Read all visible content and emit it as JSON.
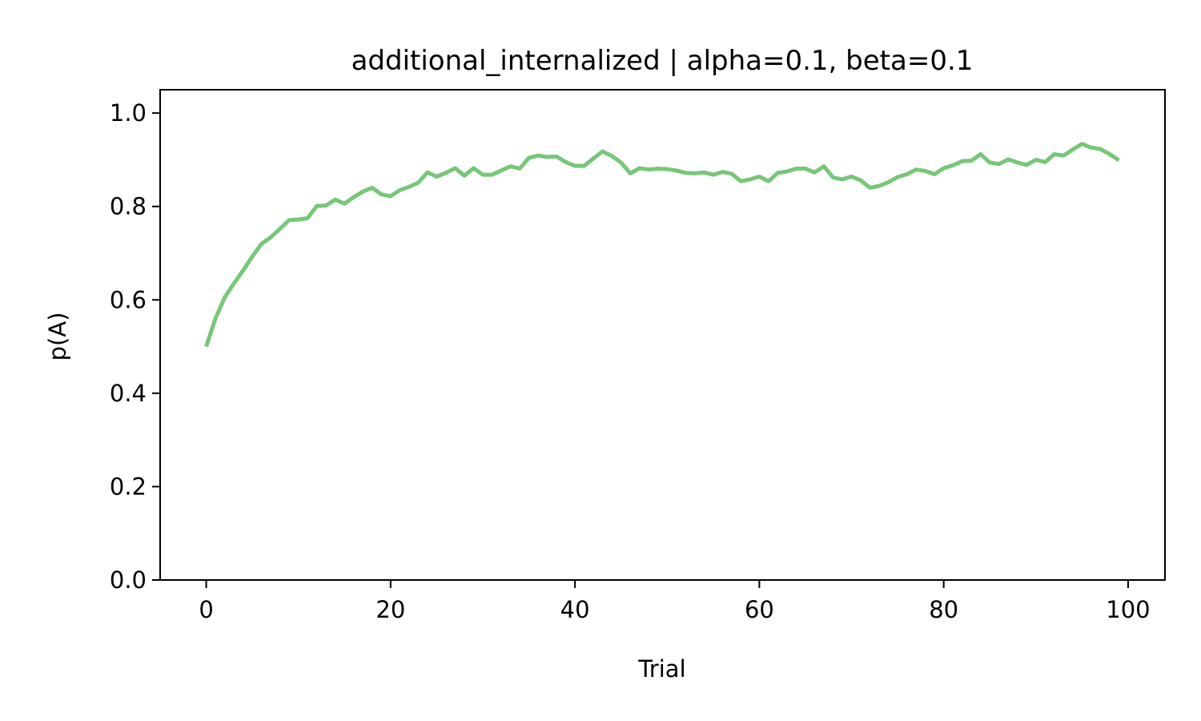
{
  "chart_data": {
    "type": "line",
    "title": "additional_internalized | alpha=0.1, beta=0.1",
    "xlabel": "Trial",
    "ylabel": "p(A)",
    "xlim": [
      -5,
      104
    ],
    "ylim": [
      0,
      1.05
    ],
    "xticks": [
      0,
      20,
      40,
      60,
      80,
      100
    ],
    "xtick_labels": [
      "0",
      "20",
      "40",
      "60",
      "80",
      "100"
    ],
    "yticks": [
      0.0,
      0.2,
      0.4,
      0.6,
      0.8,
      1.0
    ],
    "ytick_labels": [
      "0.0",
      "0.2",
      "0.4",
      "0.6",
      "0.8",
      "1.0"
    ],
    "grid": false,
    "line_color": "#77c679",
    "series": [
      {
        "x": [
          0,
          1,
          2,
          3,
          4,
          5,
          6,
          7,
          8,
          9,
          10,
          11,
          12,
          13,
          14,
          15,
          16,
          17,
          18,
          19,
          20,
          21,
          22,
          23,
          24,
          25,
          26,
          27,
          28,
          29,
          30,
          31,
          32,
          33,
          34,
          35,
          36,
          37,
          38,
          39,
          40,
          41,
          42,
          43,
          44,
          45,
          46,
          47,
          48,
          49,
          50,
          51,
          52,
          53,
          54,
          55,
          56,
          57,
          58,
          59,
          60,
          61,
          62,
          63,
          64,
          65,
          66,
          67,
          68,
          69,
          70,
          71,
          72,
          73,
          74,
          75,
          76,
          77,
          78,
          79,
          80,
          81,
          82,
          83,
          84,
          85,
          86,
          87,
          88,
          89,
          90,
          91,
          92,
          93,
          94,
          95,
          96,
          97,
          98,
          99
        ],
        "values": [
          0.5,
          0.56,
          0.605,
          0.635,
          0.663,
          0.693,
          0.72,
          0.734,
          0.752,
          0.771,
          0.772,
          0.775,
          0.801,
          0.802,
          0.815,
          0.806,
          0.82,
          0.832,
          0.84,
          0.826,
          0.822,
          0.835,
          0.842,
          0.851,
          0.873,
          0.864,
          0.872,
          0.882,
          0.866,
          0.882,
          0.868,
          0.868,
          0.877,
          0.886,
          0.881,
          0.904,
          0.909,
          0.906,
          0.907,
          0.895,
          0.887,
          0.887,
          0.903,
          0.918,
          0.908,
          0.894,
          0.871,
          0.882,
          0.879,
          0.881,
          0.88,
          0.877,
          0.872,
          0.871,
          0.873,
          0.868,
          0.874,
          0.87,
          0.854,
          0.858,
          0.864,
          0.854,
          0.872,
          0.875,
          0.881,
          0.881,
          0.873,
          0.886,
          0.862,
          0.858,
          0.864,
          0.856,
          0.84,
          0.844,
          0.852,
          0.863,
          0.869,
          0.879,
          0.876,
          0.869,
          0.882,
          0.888,
          0.897,
          0.898,
          0.912,
          0.894,
          0.891,
          0.901,
          0.894,
          0.889,
          0.9,
          0.895,
          0.912,
          0.909,
          0.922,
          0.934,
          0.926,
          0.923,
          0.912,
          0.899
        ]
      }
    ]
  }
}
